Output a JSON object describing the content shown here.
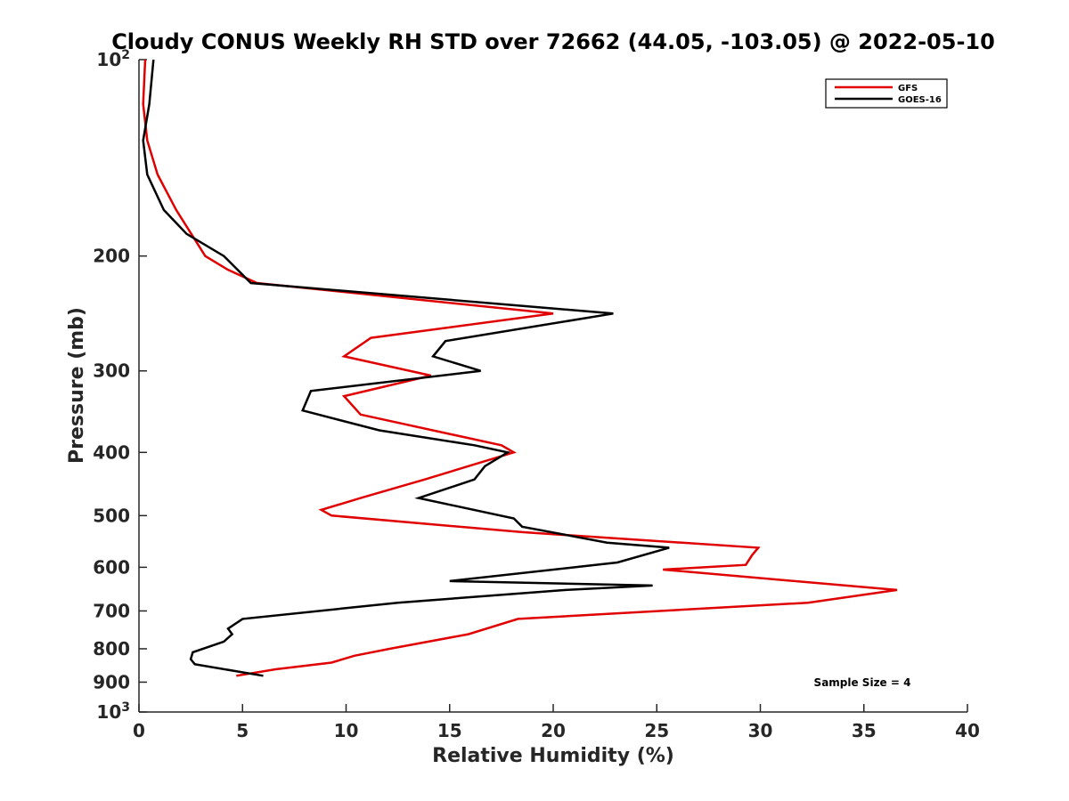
{
  "chart_data": {
    "type": "line",
    "title": "Cloudy CONUS Weekly RH STD over 72662 (44.05, -103.05) @ 2022-05-10",
    "xlabel": "Relative Humidity (%)",
    "ylabel": "Pressure (mb)",
    "xlim": [
      0,
      40
    ],
    "ylim": [
      100,
      1000
    ],
    "yscale": "log",
    "y_reversed": true,
    "grid": false,
    "legend_position": "top-right",
    "x_ticks": [
      0,
      5,
      10,
      15,
      20,
      25,
      30,
      35,
      40
    ],
    "y_ticks": [
      {
        "value": 100,
        "base": "10",
        "exp": "2"
      },
      {
        "value": 200,
        "label": "200"
      },
      {
        "value": 300,
        "label": "300"
      },
      {
        "value": 400,
        "label": "400"
      },
      {
        "value": 500,
        "label": "500"
      },
      {
        "value": 600,
        "label": "600"
      },
      {
        "value": 700,
        "label": "700"
      },
      {
        "value": 800,
        "label": "800"
      },
      {
        "value": 900,
        "label": "900"
      },
      {
        "value": 1000,
        "base": "10",
        "exp": "3"
      }
    ],
    "series": [
      {
        "name": "GFS",
        "color": "#e00000",
        "x": [
          0.3,
          0.2,
          0.4,
          0.9,
          1.8,
          3.2,
          4.3,
          5.7,
          20.0,
          11.2,
          9.9,
          14.1,
          9.9,
          10.7,
          17.5,
          18.1,
          13.8,
          10.7,
          8.8,
          9.3,
          18.5,
          29.9,
          29.6,
          29.3,
          25.3,
          36.6,
          32.3,
          18.3,
          15.9,
          12.1,
          10.4,
          9.3,
          6.6,
          4.7
        ],
        "y": [
          100,
          117,
          133,
          150,
          170,
          200,
          210,
          220,
          245,
          267,
          285,
          305,
          328,
          350,
          390,
          400,
          440,
          470,
          490,
          500,
          530,
          560,
          575,
          595,
          605,
          650,
          680,
          720,
          760,
          800,
          820,
          840,
          860,
          880
        ]
      },
      {
        "name": "GOES-16",
        "color": "#000000",
        "x": [
          0.7,
          0.5,
          0.2,
          0.4,
          1.2,
          2.3,
          4.1,
          5.4,
          22.9,
          14.8,
          14.2,
          16.5,
          8.3,
          7.9,
          11.6,
          16.2,
          17.8,
          16.7,
          16.2,
          13.5,
          18.1,
          18.5,
          22.6,
          25.6,
          23.1,
          15.0,
          24.8,
          20.6,
          12.5,
          5.0,
          4.3,
          4.5,
          4.1,
          2.6,
          2.5,
          2.7,
          6.0
        ],
        "y": [
          100,
          117,
          133,
          150,
          170,
          185,
          200,
          220,
          245,
          270,
          285,
          300,
          322,
          345,
          370,
          390,
          400,
          420,
          440,
          470,
          505,
          520,
          550,
          560,
          590,
          630,
          640,
          650,
          680,
          720,
          745,
          760,
          780,
          810,
          830,
          845,
          880
        ]
      }
    ],
    "annotation": "Sample Size = 4"
  }
}
